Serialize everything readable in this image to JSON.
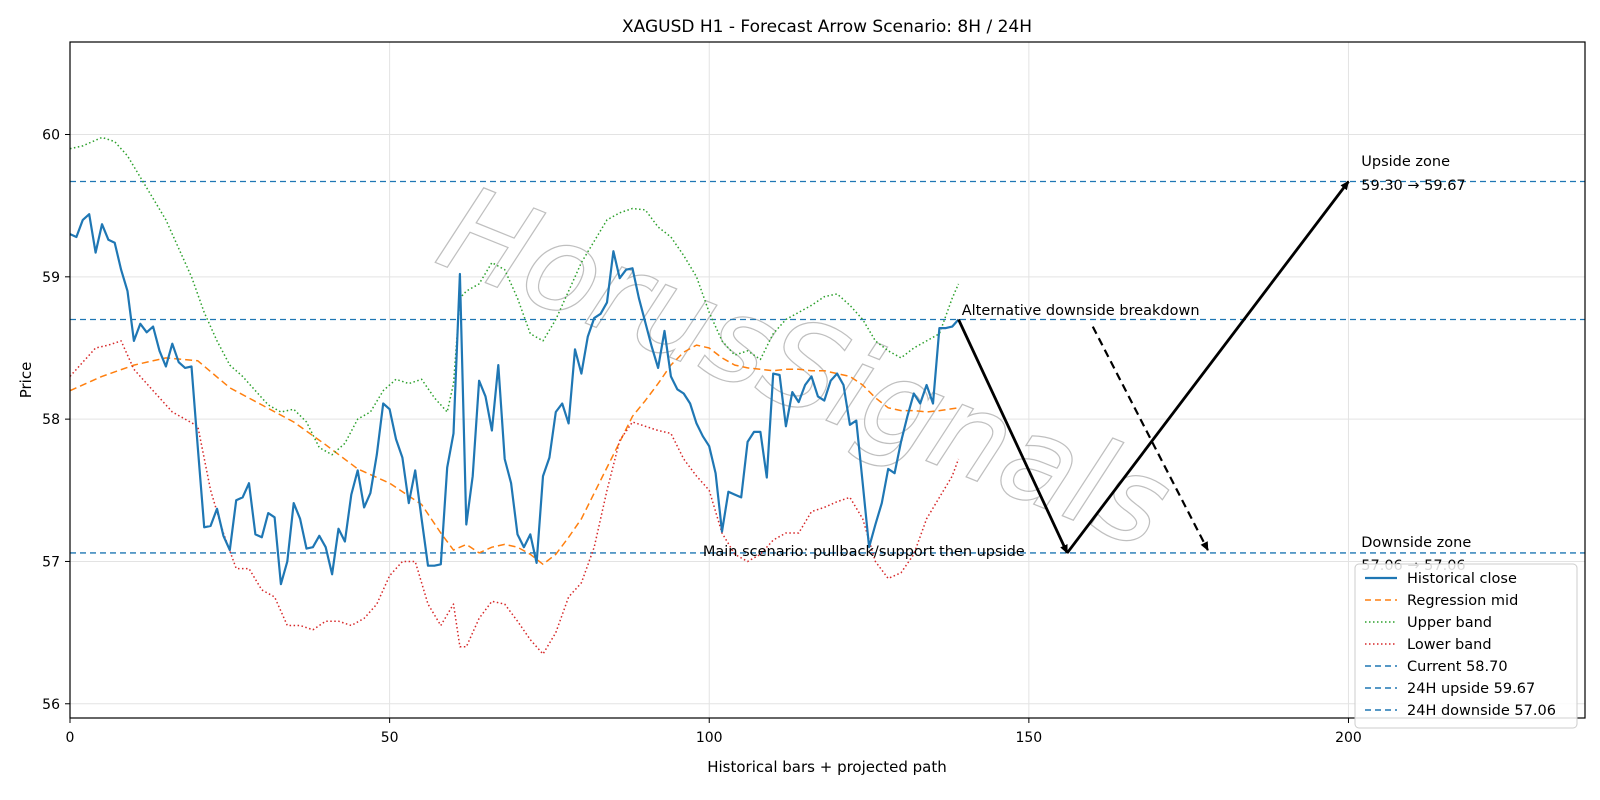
{
  "chart_data": {
    "type": "line",
    "title": "XAGUSD H1 - Forecast Arrow Scenario: 8H / 24H",
    "xlabel": "Historical bars + projected path",
    "ylabel": "Price",
    "xlim": [
      0,
      237
    ],
    "ylim": [
      55.9,
      60.65
    ],
    "xticks": [
      0,
      50,
      100,
      150,
      200
    ],
    "yticks": [
      56,
      57,
      58,
      59,
      60
    ],
    "grid": true,
    "legend_position": "lower-right",
    "watermark": "HorusSignals",
    "series": [
      {
        "name": "Historical close",
        "style": "solid",
        "color": "#1f77b4",
        "x": [
          0,
          1,
          2,
          3,
          4,
          5,
          6,
          7,
          8,
          9,
          10,
          11,
          12,
          13,
          14,
          15,
          16,
          17,
          18,
          19,
          20,
          21,
          22,
          23,
          24,
          25,
          26,
          27,
          28,
          29,
          30,
          31,
          32,
          33,
          34,
          35,
          36,
          37,
          38,
          39,
          40,
          41,
          42,
          43,
          44,
          45,
          46,
          47,
          48,
          49,
          50,
          51,
          52,
          53,
          54,
          55,
          56,
          57,
          58,
          59,
          60,
          61,
          62,
          63,
          64,
          65,
          66,
          67,
          68,
          69,
          70,
          71,
          72,
          73,
          74,
          75,
          76,
          77,
          78,
          79,
          80,
          81,
          82,
          83,
          84,
          85,
          86,
          87,
          88,
          89,
          90,
          91,
          92,
          93,
          94,
          95,
          96,
          97,
          98,
          99,
          100,
          101,
          102,
          103,
          104,
          105,
          106,
          107,
          108,
          109,
          110,
          111,
          112,
          113,
          114,
          115,
          116,
          117,
          118,
          119,
          120,
          121,
          122,
          123,
          124,
          125,
          126,
          127,
          128,
          129,
          130,
          131,
          132,
          133,
          134,
          135,
          136,
          137,
          138,
          139
        ],
        "y": [
          59.3,
          59.28,
          59.4,
          59.44,
          59.17,
          59.37,
          59.26,
          59.24,
          59.05,
          58.9,
          58.55,
          58.67,
          58.61,
          58.65,
          58.48,
          58.37,
          58.53,
          58.4,
          58.36,
          58.37,
          57.8,
          57.24,
          57.25,
          57.37,
          57.18,
          57.08,
          57.43,
          57.45,
          57.55,
          57.19,
          57.17,
          57.34,
          57.31,
          56.84,
          57.0,
          57.41,
          57.3,
          57.09,
          57.1,
          57.18,
          57.1,
          56.91,
          57.23,
          57.14,
          57.47,
          57.64,
          57.38,
          57.48,
          57.75,
          58.11,
          58.07,
          57.86,
          57.73,
          57.41,
          57.64,
          57.3,
          56.97,
          56.97,
          56.98,
          57.66,
          57.9,
          59.02,
          57.26,
          57.6,
          58.27,
          58.16,
          57.92,
          58.38,
          57.72,
          57.55,
          57.19,
          57.1,
          57.19,
          56.99,
          57.6,
          57.73,
          58.05,
          58.11,
          57.97,
          58.49,
          58.32,
          58.58,
          58.71,
          58.74,
          58.82,
          59.18,
          58.99,
          59.05,
          59.06,
          58.85,
          58.68,
          58.51,
          58.36,
          58.62,
          58.3,
          58.21,
          58.18,
          58.11,
          57.97,
          57.88,
          57.81,
          57.62,
          57.21,
          57.49,
          57.47,
          57.45,
          57.84,
          57.91,
          57.91,
          57.59,
          58.32,
          58.31,
          57.95,
          58.19,
          58.12,
          58.24,
          58.3,
          58.16,
          58.13,
          58.27,
          58.32,
          58.24,
          57.96,
          57.99,
          57.55,
          57.1,
          57.26,
          57.41,
          57.65,
          57.62,
          57.84,
          58.02,
          58.18,
          58.11,
          58.24,
          58.11,
          58.64,
          58.64,
          58.65,
          58.7
        ]
      },
      {
        "name": "Regression mid",
        "style": "dashed",
        "color": "#ff7f0e",
        "x": [
          0,
          5,
          10,
          15,
          20,
          25,
          30,
          35,
          40,
          45,
          50,
          55,
          58,
          60,
          62,
          64,
          66,
          68,
          70,
          72,
          74,
          76,
          78,
          80,
          82,
          85,
          88,
          90,
          92,
          94,
          96,
          98,
          100,
          102,
          104,
          106,
          108,
          110,
          112,
          114,
          116,
          118,
          120,
          122,
          124,
          126,
          128,
          130,
          132,
          134,
          136,
          139
        ],
        "y": [
          58.2,
          58.3,
          58.38,
          58.43,
          58.41,
          58.22,
          58.1,
          57.98,
          57.82,
          57.65,
          57.55,
          57.4,
          57.2,
          57.08,
          57.12,
          57.06,
          57.1,
          57.12,
          57.1,
          57.05,
          56.98,
          57.05,
          57.17,
          57.3,
          57.48,
          57.75,
          58.02,
          58.13,
          58.25,
          58.38,
          58.47,
          58.52,
          58.5,
          58.43,
          58.38,
          58.36,
          58.35,
          58.34,
          58.35,
          58.35,
          58.34,
          58.34,
          58.32,
          58.3,
          58.24,
          58.15,
          58.08,
          58.06,
          58.06,
          58.05,
          58.06,
          58.08
        ]
      },
      {
        "name": "Upper band",
        "style": "dotted",
        "color": "#2ca02c",
        "x": [
          0,
          2,
          5,
          7,
          9,
          11,
          13,
          15,
          17,
          19,
          21,
          23,
          25,
          27,
          29,
          31,
          33,
          35,
          37,
          39,
          41,
          43,
          45,
          47,
          49,
          51,
          53,
          55,
          57,
          59,
          60,
          61,
          62,
          64,
          66,
          68,
          70,
          72,
          74,
          76,
          78,
          80,
          82,
          84,
          86,
          88,
          90,
          92,
          94,
          96,
          98,
          100,
          102,
          104,
          106,
          108,
          110,
          112,
          114,
          116,
          118,
          120,
          122,
          124,
          126,
          128,
          130,
          132,
          134,
          136,
          138,
          139
        ],
        "y": [
          59.9,
          59.92,
          59.98,
          59.95,
          59.85,
          59.7,
          59.55,
          59.4,
          59.2,
          59.0,
          58.75,
          58.55,
          58.38,
          58.3,
          58.2,
          58.1,
          58.05,
          58.07,
          57.98,
          57.8,
          57.75,
          57.83,
          58.0,
          58.05,
          58.2,
          58.28,
          58.25,
          58.28,
          58.15,
          58.05,
          58.25,
          58.85,
          58.9,
          58.95,
          59.1,
          59.05,
          58.85,
          58.6,
          58.55,
          58.7,
          58.9,
          59.1,
          59.25,
          59.4,
          59.45,
          59.48,
          59.47,
          59.35,
          59.28,
          59.15,
          59.0,
          58.75,
          58.55,
          58.45,
          58.48,
          58.42,
          58.6,
          58.7,
          58.75,
          58.8,
          58.86,
          58.88,
          58.8,
          58.7,
          58.55,
          58.48,
          58.43,
          58.5,
          58.55,
          58.6,
          58.85,
          58.95
        ]
      },
      {
        "name": "Lower band",
        "style": "dotted",
        "color": "#d62728",
        "x": [
          0,
          2,
          4,
          6,
          8,
          10,
          12,
          14,
          16,
          18,
          20,
          22,
          24,
          26,
          28,
          30,
          32,
          34,
          36,
          38,
          40,
          42,
          44,
          46,
          48,
          50,
          52,
          54,
          56,
          58,
          60,
          61,
          62,
          64,
          66,
          68,
          70,
          72,
          74,
          76,
          78,
          80,
          82,
          84,
          86,
          88,
          90,
          92,
          94,
          96,
          98,
          100,
          102,
          104,
          106,
          108,
          110,
          112,
          114,
          116,
          118,
          120,
          122,
          124,
          126,
          128,
          130,
          132,
          134,
          136,
          138,
          139
        ],
        "y": [
          58.3,
          58.4,
          58.5,
          58.52,
          58.55,
          58.35,
          58.25,
          58.15,
          58.05,
          58.0,
          57.95,
          57.5,
          57.2,
          56.95,
          56.95,
          56.8,
          56.75,
          56.55,
          56.55,
          56.52,
          56.58,
          56.58,
          56.55,
          56.6,
          56.7,
          56.9,
          57.0,
          57.0,
          56.7,
          56.55,
          56.7,
          56.4,
          56.4,
          56.6,
          56.72,
          56.7,
          56.58,
          56.45,
          56.35,
          56.5,
          56.75,
          56.85,
          57.1,
          57.5,
          57.85,
          57.98,
          57.95,
          57.92,
          57.9,
          57.72,
          57.6,
          57.5,
          57.2,
          57.05,
          57.0,
          57.05,
          57.15,
          57.2,
          57.2,
          57.35,
          57.38,
          57.42,
          57.45,
          57.3,
          57.0,
          56.88,
          56.92,
          57.05,
          57.3,
          57.45,
          57.6,
          57.72
        ]
      }
    ],
    "hlines": [
      {
        "name": "Current 58.70",
        "y": 58.7,
        "color": "#1f77b4"
      },
      {
        "name": "24H upside 59.67",
        "y": 59.67,
        "color": "#1f77b4"
      },
      {
        "name": "24H downside 57.06",
        "y": 57.06,
        "color": "#1f77b4"
      }
    ],
    "arrows": [
      {
        "from": [
          139,
          58.7
        ],
        "to": [
          156,
          57.06
        ],
        "style": "solid"
      },
      {
        "from": [
          156,
          57.06
        ],
        "to": [
          200,
          59.67
        ],
        "style": "solid"
      },
      {
        "from": [
          160,
          58.65
        ],
        "to": [
          178,
          57.08
        ],
        "style": "dashed"
      }
    ],
    "annotations": [
      {
        "text": "Upside zone",
        "x": 202,
        "y": 59.78
      },
      {
        "text": "59.30 → 59.67",
        "x": 202,
        "y": 59.61
      },
      {
        "text": "Downside zone",
        "x": 202,
        "y": 57.1
      },
      {
        "text": "57.06 → 57.06",
        "x": 202,
        "y": 56.94
      },
      {
        "text": "Alternative downside breakdown",
        "x": 139.5,
        "y": 58.73
      },
      {
        "text": "Main scenario: pullback/support then upside",
        "x": 99,
        "y": 57.04
      }
    ]
  }
}
